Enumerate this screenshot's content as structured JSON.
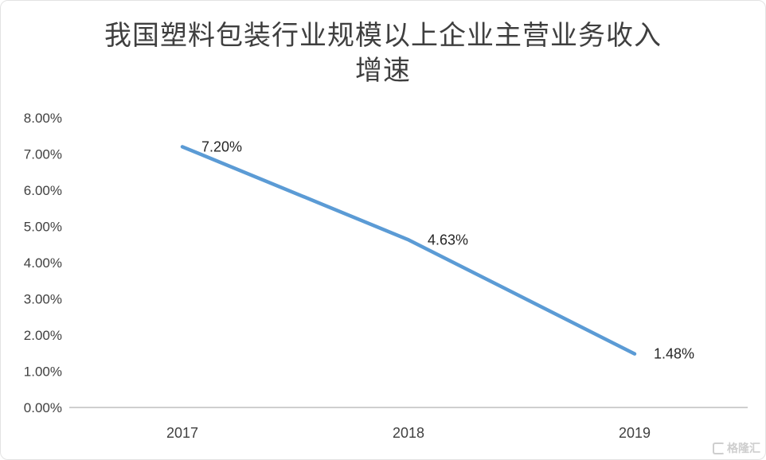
{
  "chart_data": {
    "type": "line",
    "title": "我国塑料包装行业规模以上企业主营业务收入增速",
    "categories": [
      "2017",
      "2018",
      "2019"
    ],
    "values": [
      7.2,
      4.63,
      1.48
    ],
    "point_labels": [
      "7.20%",
      "4.63%",
      "1.48%"
    ],
    "ylim": [
      0,
      8
    ],
    "y_ticks": [
      "0.00%",
      "1.00%",
      "2.00%",
      "3.00%",
      "4.00%",
      "5.00%",
      "6.00%",
      "7.00%",
      "8.00%"
    ],
    "grid": false,
    "legend": "none",
    "line_color": "#5B9BD5"
  },
  "watermark": {
    "text": "格隆汇"
  },
  "colors": {
    "title": "#3f3f3f",
    "axis_text": "#404040",
    "axis_line": "#bfbfbf",
    "line": "#5B9BD5",
    "background": "#ffffff"
  }
}
